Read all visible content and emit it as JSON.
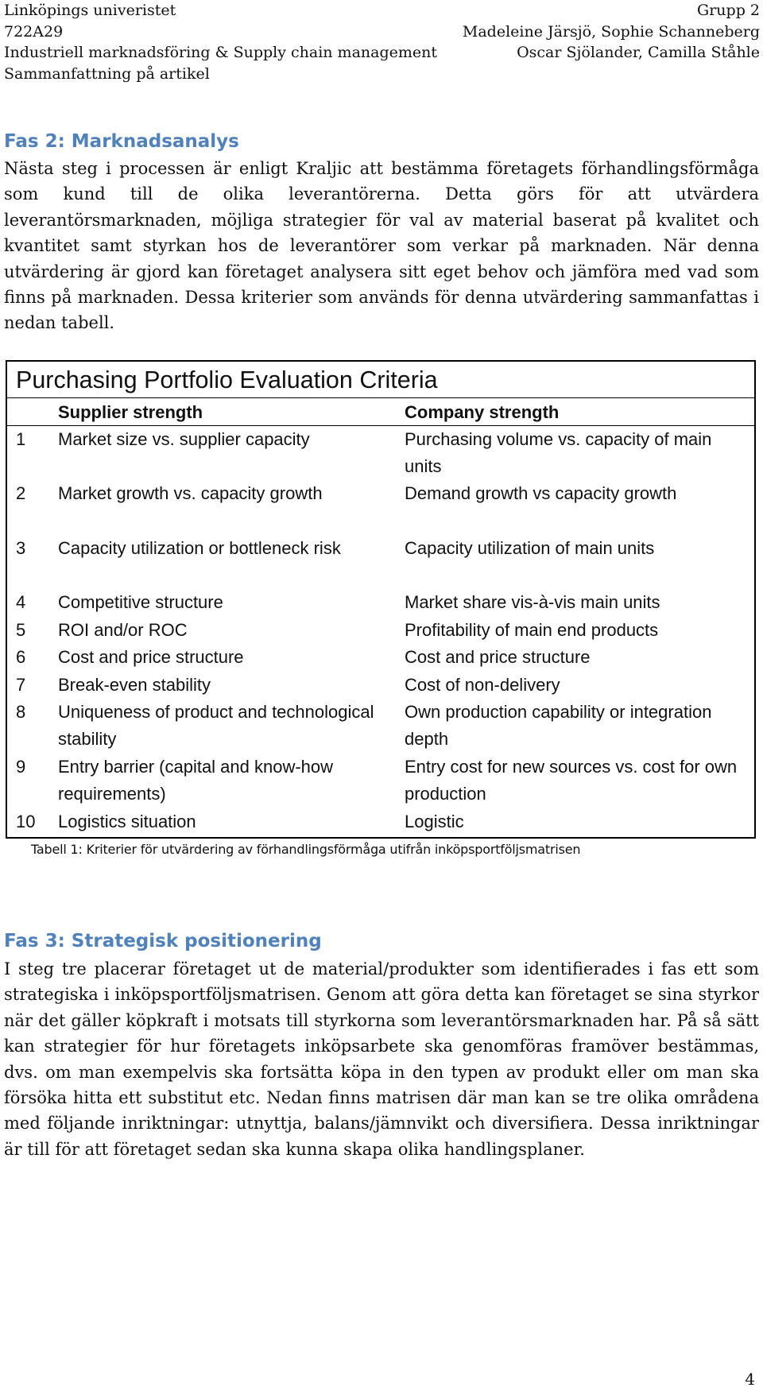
{
  "header": {
    "university": "Linköpings univeristet",
    "course_code": "722A29",
    "course_name": "Industriell marknadsföring & Supply chain management",
    "doc_type": "Sammanfattning på artikel",
    "group": "Grupp 2",
    "authors_line1": "Madeleine Järsjö, Sophie Schanneberg",
    "authors_line2": "Oscar Sjölander, Camilla Ståhle"
  },
  "section2": {
    "heading": "Fas 2: Marknadsanalys",
    "paragraph": "Nästa steg i processen är enligt Kraljic att bestämma företagets förhandlingsförmåga som kund till de olika leverantörerna. Detta görs för att utvärdera leverantörsmarknaden, möjliga strategier för val av material baserat på kvalitet och kvantitet samt styrkan hos de leverantörer som verkar på marknaden. När denna utvärdering är gjord kan företaget analysera sitt eget behov och jämföra med vad som finns på marknaden. Dessa kriterier som används för denna utvärdering sammanfattas i nedan tabell."
  },
  "table": {
    "title": "Purchasing Portfolio Evaluation Criteria",
    "col1_header": "Supplier strength",
    "col2_header": "Company strength",
    "rows": [
      {
        "num": "1",
        "supplier": "Market size vs. supplier capacity",
        "company": "Purchasing volume vs. capacity of main units"
      },
      {
        "num": "2",
        "supplier": "Market growth vs. capacity growth",
        "company": "Demand growth vs capacity growth"
      },
      {
        "num": "3",
        "supplier": "Capacity utilization or bottleneck risk",
        "company": "Capacity utilization of main units"
      },
      {
        "num": "4",
        "supplier": "Competitive structure",
        "company": "Market share vis-à-vis main units"
      },
      {
        "num": "5",
        "supplier": "ROI and/or ROC",
        "company": "Profitability of main end products"
      },
      {
        "num": "6",
        "supplier": "Cost and price structure",
        "company": "Cost and price structure"
      },
      {
        "num": "7",
        "supplier": "Break-even stability",
        "company": "Cost of non-delivery"
      },
      {
        "num": "8",
        "supplier": "Uniqueness of product and technological stability",
        "company": "Own production capability or integration depth"
      },
      {
        "num": "9",
        "supplier": "Entry barrier (capital and know-how requirements)",
        "company": "Entry cost for new sources vs. cost for own production"
      },
      {
        "num": "10",
        "supplier": "Logistics situation",
        "company": "Logistic"
      }
    ],
    "caption": "Tabell 1: Kriterier för utvärdering av förhandlingsförmåga utifrån inköpsportföljsmatrisen"
  },
  "section3": {
    "heading": "Fas 3: Strategisk positionering",
    "paragraph": "I steg tre placerar företaget ut de material/produkter som identifierades i fas ett som strategiska i inköpsportföljsmatrisen. Genom att göra detta kan företaget se sina styrkor när det gäller köpkraft i motsats till styrkorna som leverantörsmarknaden har. På så sätt kan strategier för hur företagets inköpsarbete ska genomföras framöver bestämmas, dvs. om man exempelvis ska fortsätta köpa in den typen av produkt eller om man ska försöka hitta ett substitut etc. Nedan finns matrisen där man kan se tre olika områdena med följande inriktningar: utnyttja, balans/jämnvikt och diversifiera. Dessa inriktningar är till för att företaget sedan ska kunna skapa olika handlingsplaner."
  },
  "page_number": "4",
  "colors": {
    "heading": "#4f81bd"
  }
}
